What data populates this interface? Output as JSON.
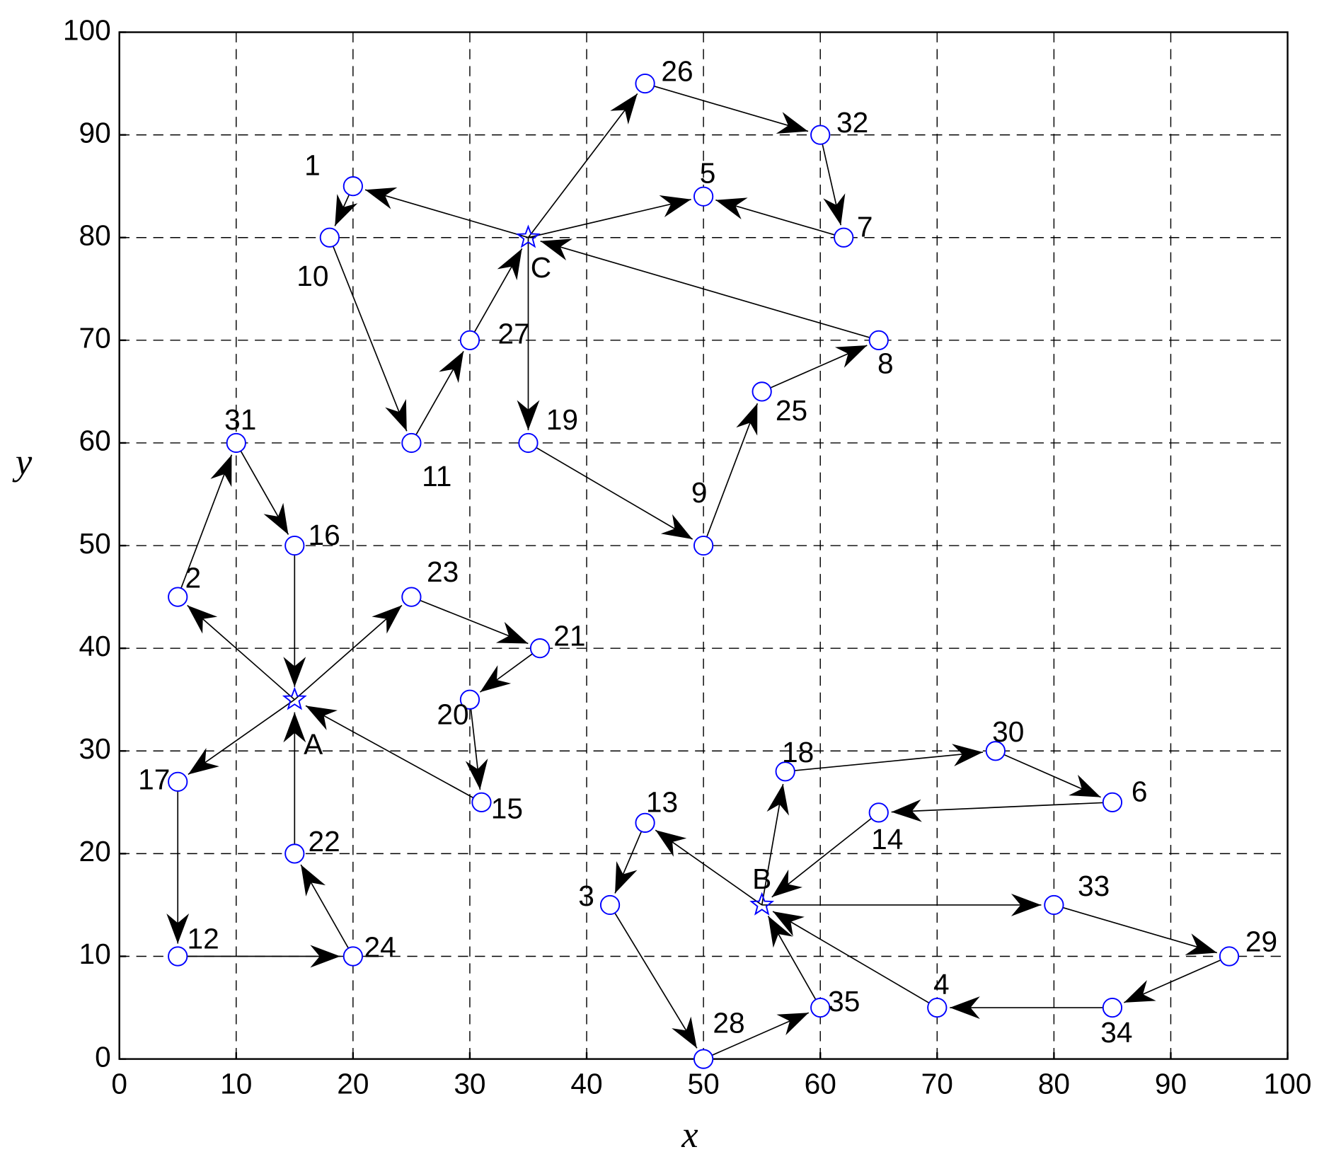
{
  "chart_data": {
    "type": "scatter",
    "xlabel": "x",
    "ylabel": "y",
    "xlim": [
      0,
      100
    ],
    "ylim": [
      0,
      100
    ],
    "xticks": [
      0,
      10,
      20,
      30,
      40,
      50,
      60,
      70,
      80,
      90,
      100
    ],
    "yticks": [
      0,
      10,
      20,
      30,
      40,
      50,
      60,
      70,
      80,
      90,
      100
    ],
    "grid": true,
    "color": "#0000ff",
    "edge_color": "#000000",
    "points": [
      {
        "label": "1",
        "x": 20,
        "y": 85,
        "marker": "circle"
      },
      {
        "label": "2",
        "x": 5,
        "y": 45,
        "marker": "circle"
      },
      {
        "label": "3",
        "x": 42,
        "y": 15,
        "marker": "circle"
      },
      {
        "label": "4",
        "x": 70,
        "y": 5,
        "marker": "circle"
      },
      {
        "label": "5",
        "x": 50,
        "y": 84,
        "marker": "circle"
      },
      {
        "label": "6",
        "x": 85,
        "y": 25,
        "marker": "circle"
      },
      {
        "label": "7",
        "x": 62,
        "y": 80,
        "marker": "circle"
      },
      {
        "label": "8",
        "x": 65,
        "y": 70,
        "marker": "circle"
      },
      {
        "label": "9",
        "x": 50,
        "y": 50,
        "marker": "circle"
      },
      {
        "label": "10",
        "x": 18,
        "y": 80,
        "marker": "circle"
      },
      {
        "label": "11",
        "x": 25,
        "y": 60,
        "marker": "circle"
      },
      {
        "label": "12",
        "x": 5,
        "y": 10,
        "marker": "circle"
      },
      {
        "label": "13",
        "x": 45,
        "y": 23,
        "marker": "circle"
      },
      {
        "label": "14",
        "x": 65,
        "y": 24,
        "marker": "circle"
      },
      {
        "label": "15",
        "x": 31,
        "y": 25,
        "marker": "circle"
      },
      {
        "label": "16",
        "x": 15,
        "y": 50,
        "marker": "circle"
      },
      {
        "label": "17",
        "x": 5,
        "y": 27,
        "marker": "circle"
      },
      {
        "label": "18",
        "x": 57,
        "y": 28,
        "marker": "circle"
      },
      {
        "label": "19",
        "x": 35,
        "y": 60,
        "marker": "circle"
      },
      {
        "label": "20",
        "x": 30,
        "y": 35,
        "marker": "circle"
      },
      {
        "label": "21",
        "x": 36,
        "y": 40,
        "marker": "circle"
      },
      {
        "label": "22",
        "x": 15,
        "y": 20,
        "marker": "circle"
      },
      {
        "label": "23",
        "x": 25,
        "y": 45,
        "marker": "circle"
      },
      {
        "label": "24",
        "x": 20,
        "y": 10,
        "marker": "circle"
      },
      {
        "label": "25",
        "x": 55,
        "y": 65,
        "marker": "circle"
      },
      {
        "label": "26",
        "x": 45,
        "y": 95,
        "marker": "circle"
      },
      {
        "label": "27",
        "x": 30,
        "y": 70,
        "marker": "circle"
      },
      {
        "label": "28",
        "x": 50,
        "y": 0,
        "marker": "circle"
      },
      {
        "label": "29",
        "x": 95,
        "y": 10,
        "marker": "circle"
      },
      {
        "label": "30",
        "x": 75,
        "y": 30,
        "marker": "circle"
      },
      {
        "label": "31",
        "x": 10,
        "y": 60,
        "marker": "circle"
      },
      {
        "label": "32",
        "x": 60,
        "y": 90,
        "marker": "circle"
      },
      {
        "label": "33",
        "x": 80,
        "y": 15,
        "marker": "circle"
      },
      {
        "label": "34",
        "x": 85,
        "y": 5,
        "marker": "circle"
      },
      {
        "label": "35",
        "x": 60,
        "y": 5,
        "marker": "circle"
      },
      {
        "label": "A",
        "x": 15,
        "y": 35,
        "marker": "star"
      },
      {
        "label": "B",
        "x": 55,
        "y": 15,
        "marker": "star"
      },
      {
        "label": "C",
        "x": 35,
        "y": 80,
        "marker": "star"
      }
    ],
    "edges": [
      {
        "from": "A",
        "to": "2"
      },
      {
        "from": "2",
        "to": "31"
      },
      {
        "from": "31",
        "to": "16"
      },
      {
        "from": "16",
        "to": "A"
      },
      {
        "from": "A",
        "to": "23"
      },
      {
        "from": "23",
        "to": "21"
      },
      {
        "from": "21",
        "to": "20"
      },
      {
        "from": "20",
        "to": "15"
      },
      {
        "from": "15",
        "to": "A"
      },
      {
        "from": "A",
        "to": "17"
      },
      {
        "from": "17",
        "to": "12"
      },
      {
        "from": "12",
        "to": "24"
      },
      {
        "from": "24",
        "to": "22"
      },
      {
        "from": "22",
        "to": "A"
      },
      {
        "from": "C",
        "to": "1"
      },
      {
        "from": "1",
        "to": "10"
      },
      {
        "from": "10",
        "to": "11"
      },
      {
        "from": "11",
        "to": "27"
      },
      {
        "from": "27",
        "to": "C"
      },
      {
        "from": "C",
        "to": "26"
      },
      {
        "from": "26",
        "to": "32"
      },
      {
        "from": "32",
        "to": "7"
      },
      {
        "from": "7",
        "to": "5"
      },
      {
        "from": "C",
        "to": "5"
      },
      {
        "from": "C",
        "to": "19"
      },
      {
        "from": "19",
        "to": "9"
      },
      {
        "from": "9",
        "to": "25"
      },
      {
        "from": "25",
        "to": "8"
      },
      {
        "from": "8",
        "to": "C"
      },
      {
        "from": "B",
        "to": "18"
      },
      {
        "from": "18",
        "to": "30"
      },
      {
        "from": "30",
        "to": "6"
      },
      {
        "from": "6",
        "to": "14"
      },
      {
        "from": "14",
        "to": "B"
      },
      {
        "from": "B",
        "to": "33"
      },
      {
        "from": "33",
        "to": "29"
      },
      {
        "from": "29",
        "to": "34"
      },
      {
        "from": "34",
        "to": "4"
      },
      {
        "from": "4",
        "to": "B"
      },
      {
        "from": "B",
        "to": "13"
      },
      {
        "from": "13",
        "to": "3"
      },
      {
        "from": "3",
        "to": "28"
      },
      {
        "from": "28",
        "to": "35"
      },
      {
        "from": "35",
        "to": "B"
      }
    ]
  }
}
